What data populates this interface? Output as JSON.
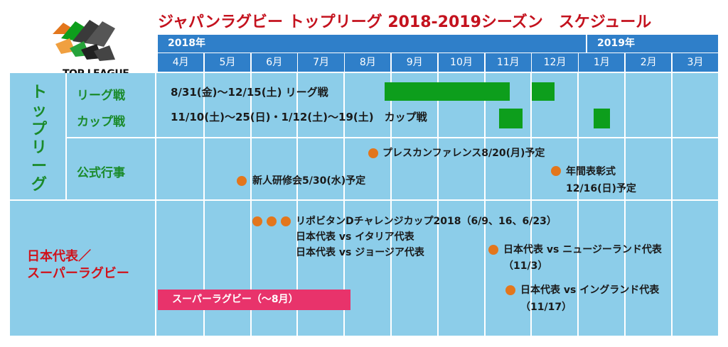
{
  "logo": {
    "text": "TOP LEAGUE",
    "icon": "rugby-players-logo"
  },
  "title": "ジャパンラグビー トップリーグ 2018-2019シーズン　スケジュール",
  "years": [
    "2018年",
    "2019年"
  ],
  "months": [
    "4月",
    "5月",
    "6月",
    "7月",
    "8月",
    "9月",
    "10月",
    "11月",
    "12月",
    "1月",
    "2月",
    "3月"
  ],
  "sections": {
    "top_league": {
      "label": "トップリーグ",
      "rows": {
        "league": {
          "label": "リーグ戦",
          "text": "8/31(金)〜12/15(土) リーグ戦"
        },
        "cup": {
          "label": "カップ戦",
          "text": "11/10(土)〜25(日)・1/12(土)〜19(土)　カップ戦"
        },
        "events": {
          "label": "公式行事"
        }
      }
    },
    "japan": {
      "label_line1": "日本代表／",
      "label_line2": "スーパーラグビー"
    }
  },
  "events": {
    "press": "プレスカンファレンス8/20(月)予定",
    "training": "新人研修会5/30(水)予定",
    "awards_line1": "年間表彰式",
    "awards_line2": "12/16(日)予定",
    "lipovitan_line1": "リポビタンDチャレンジカップ2018（6/9、16、6/23）",
    "lipovitan_line2": "日本代表 vs イタリア代表",
    "lipovitan_line3": "日本代表 vs ジョージア代表",
    "nz_line1": "日本代表 vs ニュージーランド代表",
    "nz_line2": "（11/3）",
    "eng_line1": "日本代表 vs イングランド代表",
    "eng_line2": "（11/17）",
    "super_rugby": "スーパーラグビー（〜8月）"
  },
  "colors": {
    "header_blue": "#2f7fc9",
    "cell_blue": "#8ccde9",
    "title_red": "#c4121e",
    "league_green": "#0d9e1c",
    "section_green": "#1a8a2a",
    "japan_red": "#d0121b",
    "dot_orange": "#e3761c",
    "super_pink": "#e8336b"
  }
}
